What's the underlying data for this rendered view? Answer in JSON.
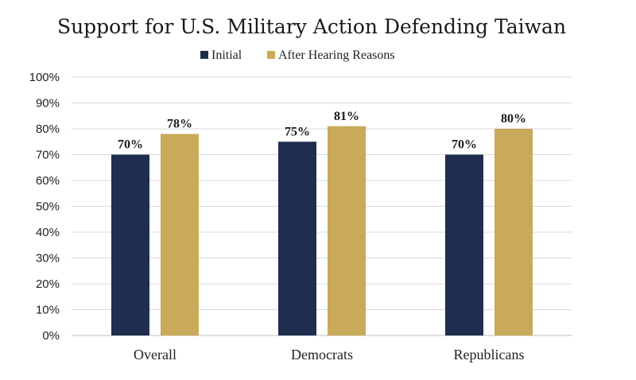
{
  "chart_data": {
    "type": "bar",
    "title": "Support for U.S. Military Action Defending Taiwan",
    "categories": [
      "Overall",
      "Democrats",
      "Republicans"
    ],
    "series": [
      {
        "name": "Initial",
        "values": [
          70,
          75,
          70
        ],
        "color": "#1f2d4e"
      },
      {
        "name": "After Hearing Reasons",
        "values": [
          78,
          81,
          80
        ],
        "color": "#c9a95a"
      }
    ],
    "value_labels": [
      [
        "70%",
        "75%",
        "70%"
      ],
      [
        "78%",
        "81%",
        "80%"
      ]
    ],
    "yticks": [
      "0%",
      "10%",
      "20%",
      "30%",
      "40%",
      "50%",
      "60%",
      "70%",
      "80%",
      "90%",
      "100%"
    ],
    "ylim": [
      0,
      100
    ],
    "xlabel": "",
    "ylabel": "",
    "grid": true,
    "legend_position": "top-center"
  }
}
